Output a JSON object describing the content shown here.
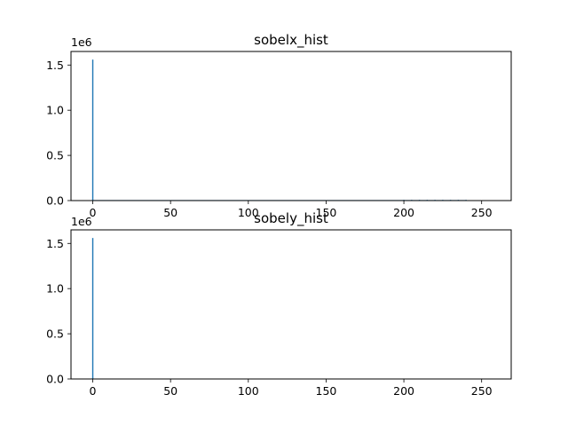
{
  "chart_data": [
    {
      "type": "bar",
      "title": "sobelx_hist",
      "xlabel": "",
      "ylabel": "",
      "y_offset_label": "1e6",
      "xlim": [
        -14,
        269
      ],
      "ylim": [
        0,
        1.65
      ],
      "xticks": [
        0,
        50,
        100,
        150,
        200,
        250
      ],
      "yticks": [
        0.0,
        0.5,
        1.0,
        1.5
      ],
      "ytick_labels": [
        "0.0",
        "0.5",
        "1.0",
        "1.5"
      ],
      "bar_color": "#1f77b4",
      "series": [
        {
          "x": [
            0,
            200,
            205,
            210,
            215,
            220,
            225,
            230,
            235,
            240
          ],
          "values": [
            1.56,
            0.004,
            0.004,
            0.004,
            0.004,
            0.004,
            0.004,
            0.004,
            0.004,
            0.003
          ]
        }
      ],
      "baseline": {
        "from": 0,
        "to": 240,
        "value": 0.006
      }
    },
    {
      "type": "bar",
      "title": "sobely_hist",
      "xlabel": "",
      "ylabel": "",
      "y_offset_label": "1e6",
      "xlim": [
        -14,
        269
      ],
      "ylim": [
        0,
        1.65
      ],
      "xticks": [
        0,
        50,
        100,
        150,
        200,
        250
      ],
      "yticks": [
        0.0,
        0.5,
        1.0,
        1.5
      ],
      "ytick_labels": [
        "0.0",
        "0.5",
        "1.0",
        "1.5"
      ],
      "bar_color": "#1f77b4",
      "series": [
        {
          "x": [
            0
          ],
          "values": [
            1.56
          ]
        }
      ],
      "baseline": null
    }
  ]
}
